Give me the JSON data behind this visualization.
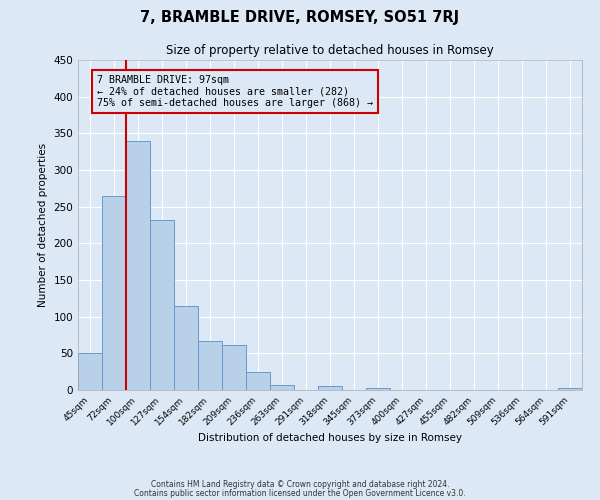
{
  "title": "7, BRAMBLE DRIVE, ROMSEY, SO51 7RJ",
  "subtitle": "Size of property relative to detached houses in Romsey",
  "xlabel": "Distribution of detached houses by size in Romsey",
  "ylabel": "Number of detached properties",
  "bar_labels": [
    "45sqm",
    "72sqm",
    "100sqm",
    "127sqm",
    "154sqm",
    "182sqm",
    "209sqm",
    "236sqm",
    "263sqm",
    "291sqm",
    "318sqm",
    "345sqm",
    "373sqm",
    "400sqm",
    "427sqm",
    "455sqm",
    "482sqm",
    "509sqm",
    "536sqm",
    "564sqm",
    "591sqm"
  ],
  "bar_values": [
    50,
    265,
    340,
    232,
    115,
    67,
    62,
    25,
    7,
    0,
    5,
    0,
    3,
    0,
    0,
    0,
    0,
    0,
    0,
    0,
    3
  ],
  "bar_color": "#b8d0e8",
  "bar_edge_color": "#6699cc",
  "property_line_bar_idx": 2,
  "property_label": "7 BRAMBLE DRIVE: 97sqm",
  "annotation_line1": "← 24% of detached houses are smaller (282)",
  "annotation_line2": "75% of semi-detached houses are larger (868) →",
  "vline_color": "#cc0000",
  "box_edge_color": "#cc0000",
  "ylim": [
    0,
    450
  ],
  "yticks": [
    0,
    50,
    100,
    150,
    200,
    250,
    300,
    350,
    400,
    450
  ],
  "bg_color": "#dce8f5",
  "grid_color": "#ffffff",
  "footer1": "Contains HM Land Registry data © Crown copyright and database right 2024.",
  "footer2": "Contains public sector information licensed under the Open Government Licence v3.0."
}
